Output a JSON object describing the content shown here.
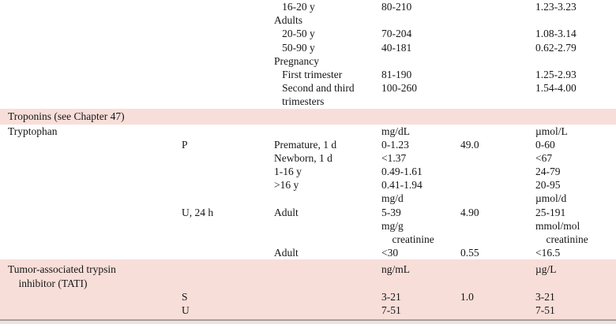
{
  "colors": {
    "band_pink": "#f8ded9",
    "rule_gray": "#a99f9d",
    "text": "#161616"
  },
  "table": {
    "description": "reference-intervals-table-fragment",
    "sections": [
      {
        "name": "section-tryptophan-top-continuation",
        "highlighted": false,
        "rows": [
          [
            "",
            "",
            "   16-20 y",
            "80-210",
            "",
            "1.23-3.23"
          ],
          [
            "",
            "",
            "Adults",
            "",
            "",
            ""
          ],
          [
            "",
            "",
            "   20-50 y",
            "70-204",
            "",
            "1.08-3.14"
          ],
          [
            "",
            "",
            "   50-90 y",
            "40-181",
            "",
            "0.62-2.79"
          ],
          [
            "",
            "",
            "Pregnancy",
            "",
            "",
            ""
          ],
          [
            "",
            "",
            "   First trimester",
            "81-190",
            "",
            "1.25-2.93"
          ],
          [
            "",
            "",
            "   Second and third",
            "100-260",
            "",
            "1.54-4.00"
          ],
          [
            "",
            "",
            "   trimesters",
            "",
            "",
            ""
          ]
        ]
      },
      {
        "name": "section-troponins",
        "highlighted": true,
        "rows": [
          [
            "Troponins (see Chapter 47)",
            "",
            "",
            "",
            "",
            ""
          ]
        ]
      },
      {
        "name": "section-tryptophan",
        "highlighted": false,
        "rows": [
          [
            "Tryptophan",
            "",
            "",
            "mg/dL",
            "",
            "µmol/L"
          ],
          [
            "",
            "P",
            "Premature, 1 d",
            "0-1.23",
            "49.0",
            "0-60"
          ],
          [
            "",
            "",
            "Newborn, 1 d",
            "<1.37",
            "",
            "<67"
          ],
          [
            "",
            "",
            "1-16 y",
            "0.49-1.61",
            "",
            "24-79"
          ],
          [
            "",
            "",
            ">16 y",
            "0.41-1.94",
            "",
            "20-95"
          ],
          [
            "",
            "",
            "",
            "mg/d",
            "",
            "µmol/d"
          ],
          [
            "",
            "U, 24 h",
            "Adult",
            "5-39",
            "4.90",
            "25-191"
          ],
          [
            "",
            "",
            "",
            "mg/g",
            "",
            "mmol/mol"
          ],
          [
            "",
            "",
            "",
            "    creatinine",
            "",
            "    creatinine"
          ],
          [
            "",
            "",
            "Adult",
            "<30",
            "0.55",
            "<16.5"
          ]
        ]
      },
      {
        "name": "section-tati",
        "highlighted": true,
        "rows": [
          [
            "Tumor-associated trypsin",
            "",
            "",
            "ng/mL",
            "",
            "µg/L"
          ],
          [
            "    inhibitor (TATI)",
            "",
            "",
            "",
            "",
            ""
          ],
          [
            "",
            "S",
            "",
            "3-21",
            "1.0",
            "3-21"
          ],
          [
            "",
            "U",
            "",
            "7-51",
            "",
            "7-51"
          ]
        ]
      }
    ]
  }
}
